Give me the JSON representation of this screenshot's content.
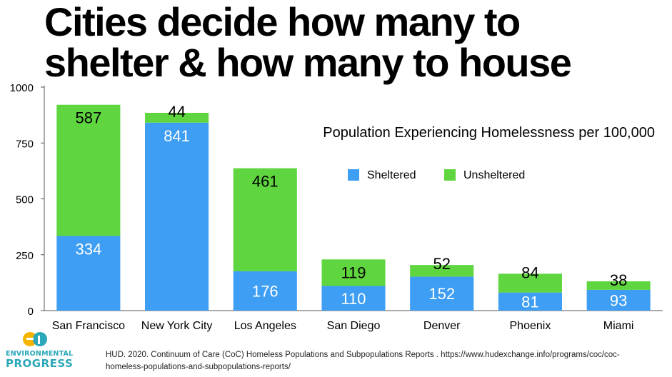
{
  "headline": {
    "line1": "Cities decide how many to",
    "line2": "shelter & how many to house"
  },
  "chart_data": {
    "type": "bar",
    "stacked": true,
    "subtitle": "Population Experiencing Homelessness per 100,000",
    "categories": [
      "San Francisco",
      "New York City",
      "Los Angeles",
      "San Diego",
      "Denver",
      "Phoenix",
      "Miami"
    ],
    "series": [
      {
        "name": "Sheltered",
        "color": "#3d9ef3",
        "values": [
          334,
          841,
          176,
          110,
          152,
          81,
          93
        ]
      },
      {
        "name": "Unsheltered",
        "color": "#5fd63f",
        "values": [
          587,
          44,
          461,
          119,
          52,
          84,
          38
        ]
      }
    ],
    "ylim": [
      0,
      1000
    ],
    "yticks": [
      "0",
      "250",
      "500",
      "750",
      "1000"
    ],
    "grid": false,
    "legend_position": "center"
  },
  "source": "HUD. 2020. Continuum of Care (CoC) Homeless Populations and Subpopulations Reports . https://www.hudexchange.info/programs/coc/coc-homeless-populations-and-subpopulations-reports/",
  "logo": {
    "line1": "ENVIRONMENTAL",
    "line2": "PROGRESS",
    "icon": "ep-logo-icon",
    "color": "#2aa7b8"
  }
}
